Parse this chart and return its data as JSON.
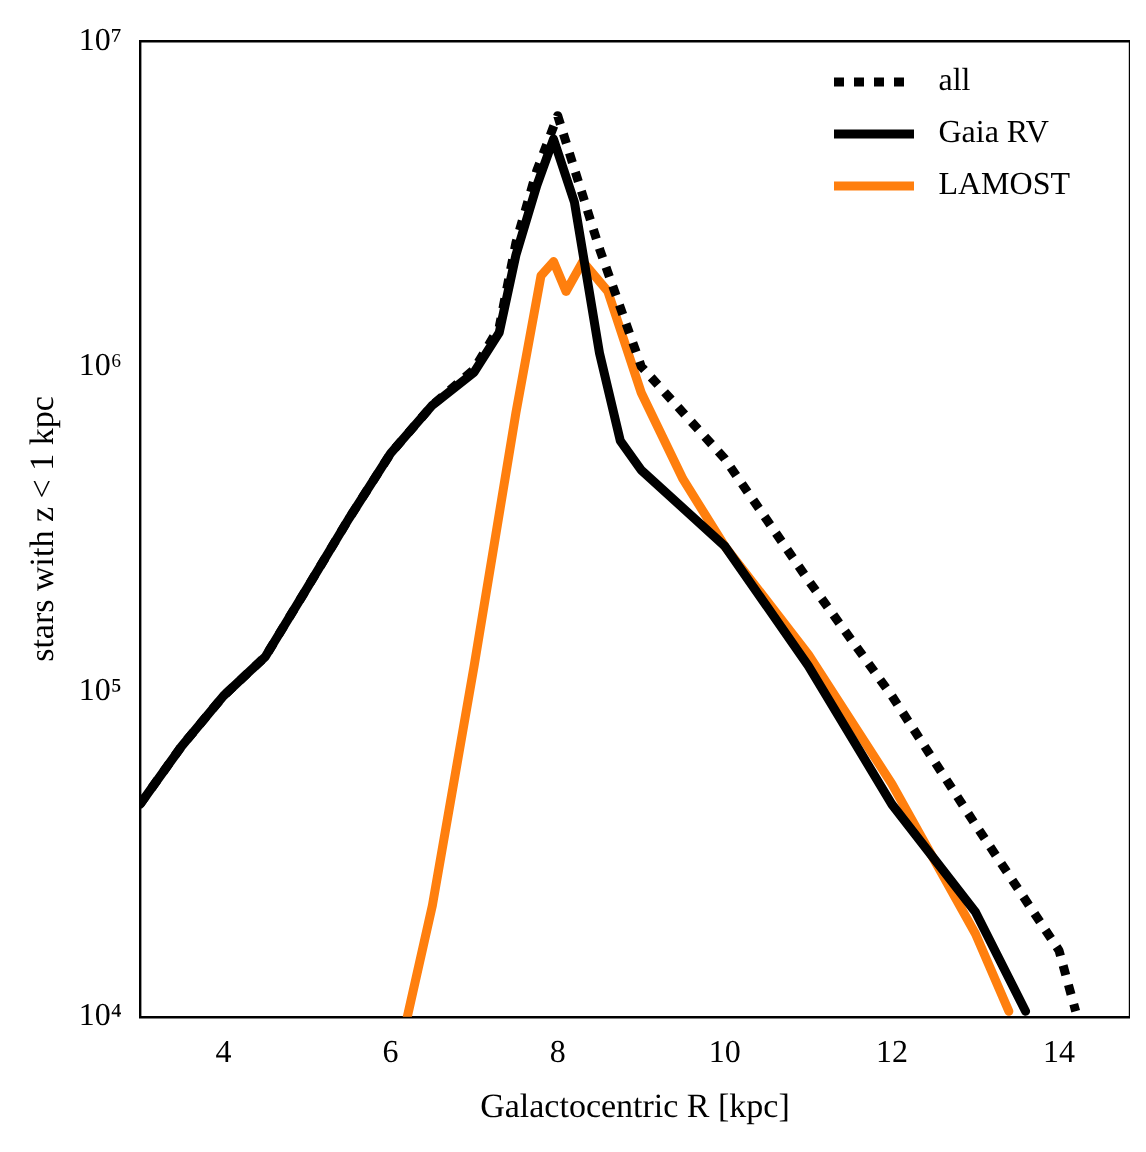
{
  "chart_data": {
    "type": "line",
    "xlabel": "Galactocentric R [kpc]",
    "ylabel": "stars with z < 1 kpc",
    "log": "y",
    "grid": false,
    "legend": "top right",
    "marker": "none",
    "xlim": [
      3,
      14.85
    ],
    "xticks": [
      4,
      6,
      8,
      10,
      12,
      14
    ],
    "ylim": [
      10000,
      10000000
    ],
    "yticks": [
      {
        "value": 10000,
        "label": "10⁴"
      },
      {
        "value": 100000,
        "label": "10⁵"
      },
      {
        "value": 1000000,
        "label": "10⁶"
      },
      {
        "value": 10000000,
        "label": "10⁷"
      }
    ],
    "series": [
      {
        "name": "all",
        "color": "#000000",
        "line_style": "dotted",
        "x": [
          3,
          3.5,
          4,
          4.5,
          5,
          5.5,
          6,
          6.5,
          7,
          7.3,
          7.5,
          7.75,
          8,
          8.5,
          9,
          10,
          11,
          12,
          13,
          14,
          14.2
        ],
        "values": [
          45000,
          68000,
          97000,
          128000,
          208000,
          340000,
          540000,
          760000,
          980000,
          1320000,
          2400000,
          4000000,
          5900000,
          2300000,
          1000000,
          520000,
          220000,
          97000,
          39000,
          16000,
          10400
        ]
      },
      {
        "name": "Gaia RV",
        "color": "#000000",
        "line_style": "solid",
        "x": [
          3,
          3.5,
          4,
          4.5,
          5,
          5.5,
          6,
          6.5,
          7,
          7.3,
          7.5,
          7.75,
          7.95,
          8.2,
          8.5,
          8.75,
          9,
          10,
          11,
          12,
          13,
          13.6
        ],
        "values": [
          45000,
          68000,
          97000,
          128000,
          208000,
          340000,
          540000,
          760000,
          960000,
          1270000,
          2200000,
          3600000,
          5000000,
          3200000,
          1100000,
          590000,
          480000,
          280000,
          120000,
          45000,
          21000,
          10400
        ]
      },
      {
        "name": "LAMOST",
        "color": "#ff7f0e",
        "line_style": "solid",
        "x": [
          6.2,
          6.5,
          7,
          7.5,
          7.8,
          7.95,
          8.1,
          8.3,
          8.6,
          9,
          9.5,
          10,
          11,
          12,
          13,
          13.4
        ],
        "values": [
          10000,
          22000,
          120000,
          720000,
          1900000,
          2100000,
          1700000,
          2100000,
          1700000,
          830000,
          450000,
          280000,
          130000,
          52000,
          18000,
          10400
        ]
      }
    ]
  }
}
